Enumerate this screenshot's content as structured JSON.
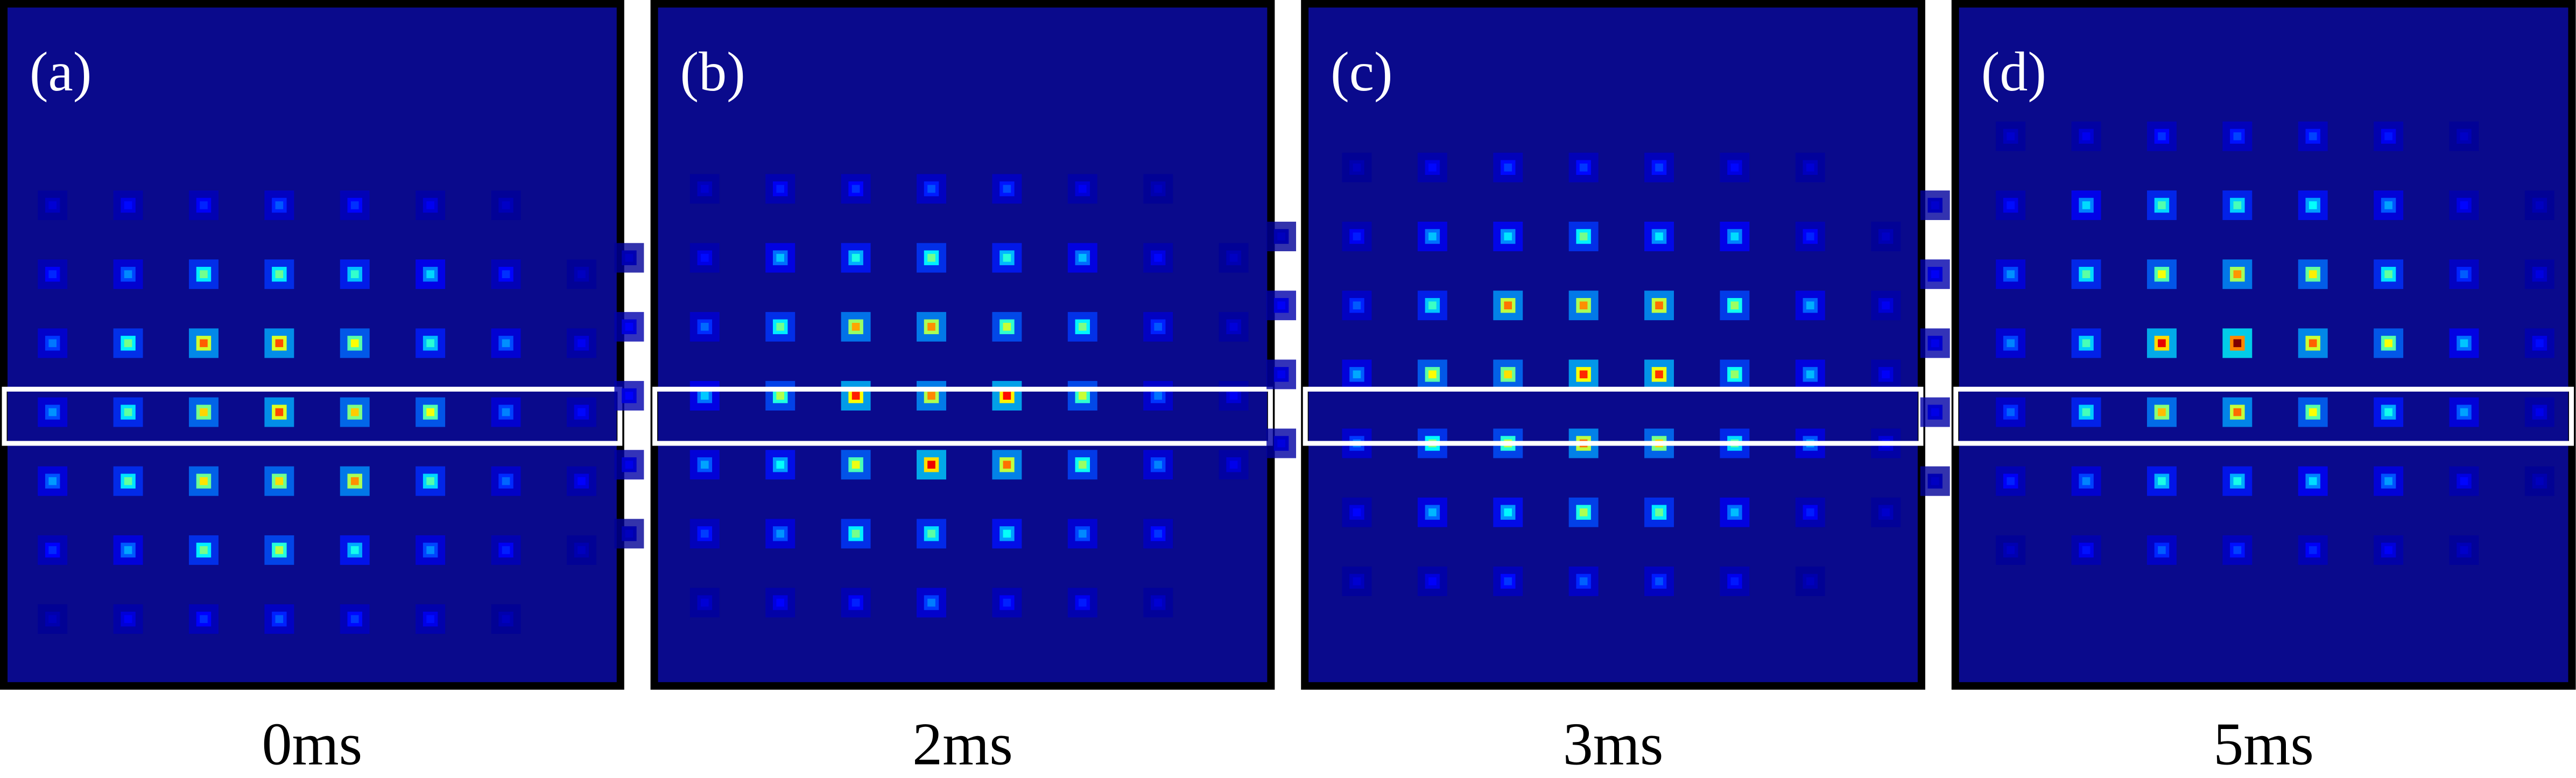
{
  "panels": [
    {
      "label": "(a)",
      "caption": "0ms"
    },
    {
      "label": "(b)",
      "caption": "2ms"
    },
    {
      "label": "(c)",
      "caption": "3ms"
    },
    {
      "label": "(d)",
      "caption": "5ms"
    }
  ]
}
